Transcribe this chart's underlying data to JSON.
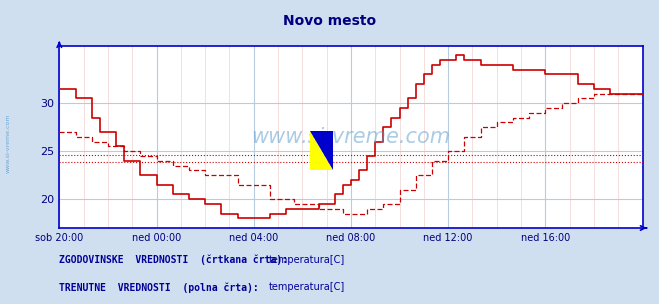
{
  "title": "Novo mesto",
  "title_color": "#000080",
  "bg_color": "#d0dff0",
  "plot_bg_color": "#ffffff",
  "grid_color_major": "#b8cce0",
  "grid_color_minor": "#f0d0d0",
  "axis_color": "#0000cc",
  "watermark": "www.si-vreme.com",
  "xlabel_color": "#000080",
  "ylabel_color": "#000080",
  "xlim": [
    0,
    288
  ],
  "ylim": [
    17,
    36
  ],
  "yticks": [
    20,
    25,
    30
  ],
  "xtick_labels": [
    "sob 20:00",
    "ned 00:00",
    "ned 04:00",
    "ned 08:00",
    "ned 12:00",
    "ned 16:00"
  ],
  "xtick_positions": [
    0,
    48,
    96,
    144,
    192,
    240
  ],
  "current_line_color": "#cc0000",
  "historic_line_color": "#cc0000",
  "legend_text_color": "#000099",
  "legend_label1": "ZGODOVINSKE  VREDNOSTI  (črtkana črta):",
  "legend_label2": "TRENUTNE  VREDNOSTI  (polna črta):",
  "legend_series": "temperatura[C]",
  "current_temps": [
    [
      0,
      31.5
    ],
    [
      8,
      31.5
    ],
    [
      8,
      30.5
    ],
    [
      16,
      30.5
    ],
    [
      16,
      28.5
    ],
    [
      20,
      28.5
    ],
    [
      20,
      27.0
    ],
    [
      28,
      27.0
    ],
    [
      28,
      25.5
    ],
    [
      32,
      25.5
    ],
    [
      32,
      24.0
    ],
    [
      40,
      24.0
    ],
    [
      40,
      22.5
    ],
    [
      48,
      22.5
    ],
    [
      48,
      21.5
    ],
    [
      56,
      21.5
    ],
    [
      56,
      20.5
    ],
    [
      64,
      20.5
    ],
    [
      64,
      20.0
    ],
    [
      72,
      20.0
    ],
    [
      72,
      19.5
    ],
    [
      80,
      19.5
    ],
    [
      80,
      18.5
    ],
    [
      88,
      18.5
    ],
    [
      88,
      18.0
    ],
    [
      96,
      18.0
    ],
    [
      104,
      18.0
    ],
    [
      104,
      18.5
    ],
    [
      112,
      18.5
    ],
    [
      112,
      19.0
    ],
    [
      120,
      19.0
    ],
    [
      128,
      19.0
    ],
    [
      128,
      19.5
    ],
    [
      136,
      19.5
    ],
    [
      136,
      20.5
    ],
    [
      140,
      20.5
    ],
    [
      140,
      21.5
    ],
    [
      144,
      21.5
    ],
    [
      144,
      22.0
    ],
    [
      148,
      22.0
    ],
    [
      148,
      23.0
    ],
    [
      152,
      23.0
    ],
    [
      152,
      24.5
    ],
    [
      156,
      24.5
    ],
    [
      156,
      26.0
    ],
    [
      160,
      26.0
    ],
    [
      160,
      27.5
    ],
    [
      164,
      27.5
    ],
    [
      164,
      28.5
    ],
    [
      168,
      28.5
    ],
    [
      168,
      29.5
    ],
    [
      172,
      29.5
    ],
    [
      172,
      30.5
    ],
    [
      176,
      30.5
    ],
    [
      176,
      32.0
    ],
    [
      180,
      32.0
    ],
    [
      180,
      33.0
    ],
    [
      184,
      33.0
    ],
    [
      184,
      34.0
    ],
    [
      188,
      34.0
    ],
    [
      188,
      34.5
    ],
    [
      196,
      34.5
    ],
    [
      196,
      35.0
    ],
    [
      200,
      35.0
    ],
    [
      200,
      34.5
    ],
    [
      208,
      34.5
    ],
    [
      208,
      34.0
    ],
    [
      216,
      34.0
    ],
    [
      224,
      34.0
    ],
    [
      224,
      33.5
    ],
    [
      232,
      33.5
    ],
    [
      240,
      33.5
    ],
    [
      240,
      33.0
    ],
    [
      248,
      33.0
    ],
    [
      256,
      33.0
    ],
    [
      256,
      32.0
    ],
    [
      264,
      32.0
    ],
    [
      264,
      31.5
    ],
    [
      272,
      31.5
    ],
    [
      272,
      31.0
    ],
    [
      288,
      31.0
    ]
  ],
  "historic_temps": [
    [
      0,
      27.0
    ],
    [
      8,
      27.0
    ],
    [
      8,
      26.5
    ],
    [
      16,
      26.5
    ],
    [
      16,
      26.0
    ],
    [
      24,
      26.0
    ],
    [
      24,
      25.5
    ],
    [
      32,
      25.5
    ],
    [
      32,
      25.0
    ],
    [
      40,
      25.0
    ],
    [
      40,
      24.5
    ],
    [
      48,
      24.5
    ],
    [
      48,
      24.0
    ],
    [
      56,
      24.0
    ],
    [
      56,
      23.5
    ],
    [
      64,
      23.5
    ],
    [
      64,
      23.0
    ],
    [
      72,
      23.0
    ],
    [
      72,
      22.5
    ],
    [
      88,
      22.5
    ],
    [
      88,
      21.5
    ],
    [
      104,
      21.5
    ],
    [
      104,
      20.0
    ],
    [
      116,
      20.0
    ],
    [
      116,
      19.5
    ],
    [
      128,
      19.5
    ],
    [
      128,
      19.0
    ],
    [
      140,
      19.0
    ],
    [
      140,
      18.5
    ],
    [
      152,
      18.5
    ],
    [
      152,
      19.0
    ],
    [
      160,
      19.0
    ],
    [
      160,
      19.5
    ],
    [
      168,
      19.5
    ],
    [
      168,
      21.0
    ],
    [
      176,
      21.0
    ],
    [
      176,
      22.5
    ],
    [
      184,
      22.5
    ],
    [
      184,
      24.0
    ],
    [
      192,
      24.0
    ],
    [
      192,
      25.0
    ],
    [
      200,
      25.0
    ],
    [
      200,
      26.5
    ],
    [
      208,
      26.5
    ],
    [
      208,
      27.5
    ],
    [
      216,
      27.5
    ],
    [
      216,
      28.0
    ],
    [
      224,
      28.0
    ],
    [
      224,
      28.5
    ],
    [
      232,
      28.5
    ],
    [
      232,
      29.0
    ],
    [
      240,
      29.0
    ],
    [
      240,
      29.5
    ],
    [
      248,
      29.5
    ],
    [
      248,
      30.0
    ],
    [
      256,
      30.0
    ],
    [
      256,
      30.5
    ],
    [
      264,
      30.5
    ],
    [
      264,
      31.0
    ],
    [
      288,
      31.0
    ]
  ],
  "hline_values": [
    24.6,
    23.9
  ],
  "hline_color": "#cc0000"
}
